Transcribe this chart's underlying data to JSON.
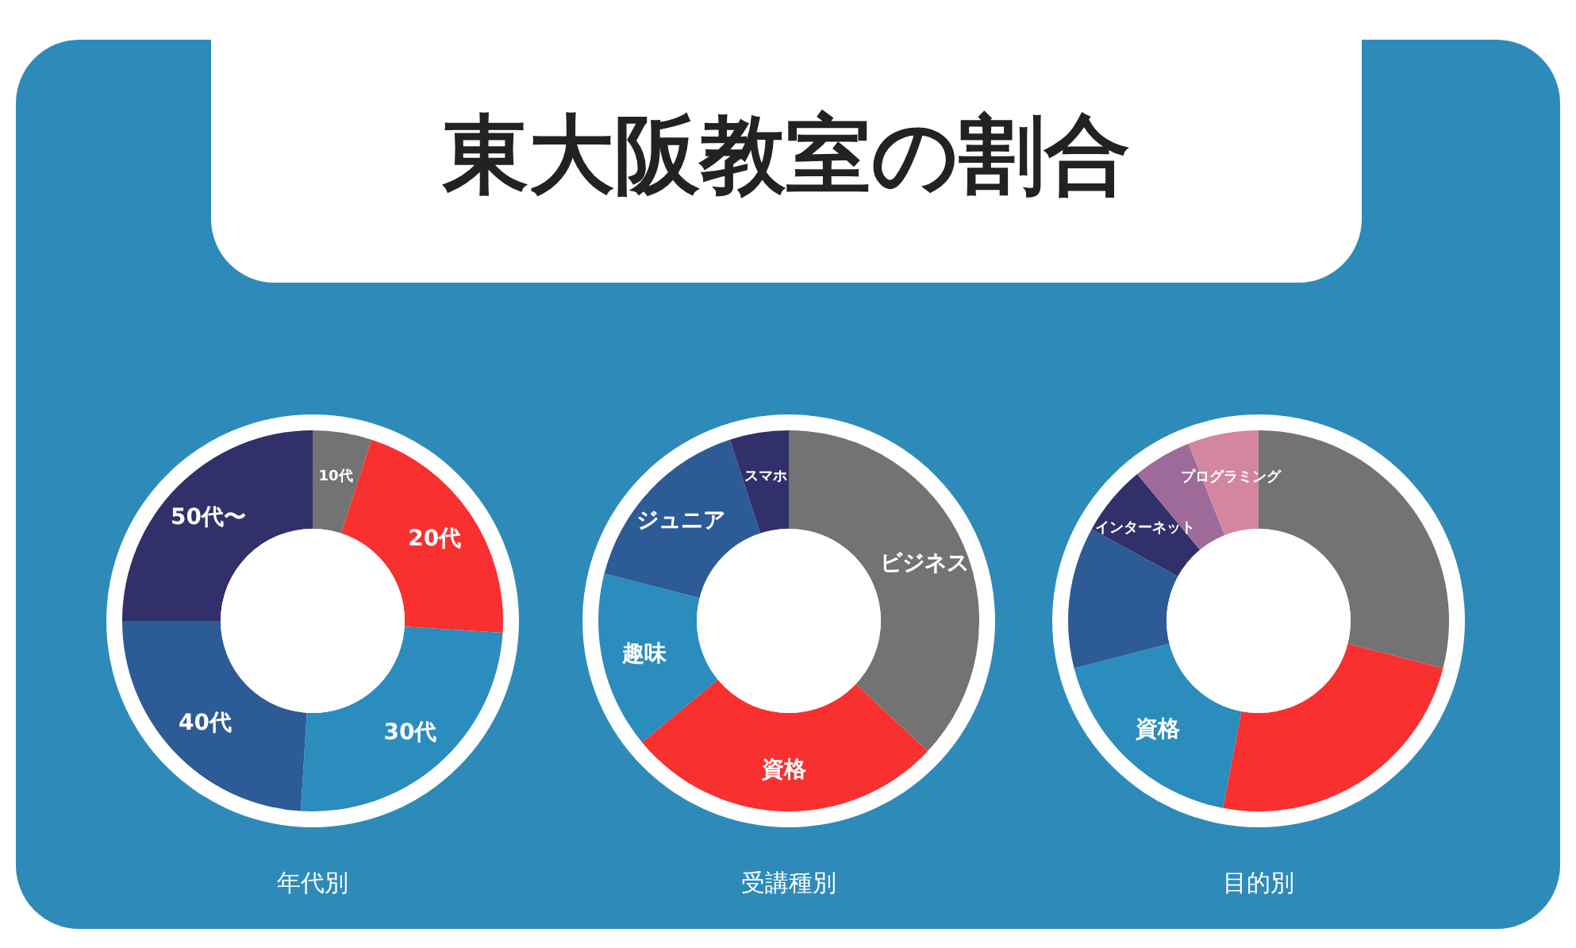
{
  "chart_data": [
    {
      "type": "other",
      "title": "東大阪教室の割合"
    },
    {
      "type": "donut",
      "xlabel": "年代別",
      "categories": [
        "10代",
        "20代",
        "30代",
        "40代",
        "50代〜"
      ],
      "values": [
        5,
        21,
        25,
        24,
        25
      ],
      "colors": [
        "#737373",
        "#f93030",
        "#2b8cbe",
        "#2c5b96",
        "#31306a"
      ]
    },
    {
      "type": "donut",
      "xlabel": "受講種別",
      "categories": [
        "ビジネス",
        "資格",
        "趣味",
        "ジュニア",
        "スマホ"
      ],
      "values": [
        37,
        27,
        15,
        16,
        5
      ],
      "colors": [
        "#737373",
        "#f93030",
        "#2b8cbe",
        "#2c5b96",
        "#31306a"
      ]
    },
    {
      "type": "donut",
      "xlabel": "目的別",
      "categories": [
        null,
        null,
        "資格",
        null,
        "インターネット",
        null,
        "プログラミング"
      ],
      "values": [
        29,
        24,
        18,
        12,
        6,
        5,
        6
      ],
      "colors": [
        "#737373",
        "#f93030",
        "#2b8cbe",
        "#2c5b96",
        "#31306a",
        "#9e6a99",
        "#d3869f"
      ]
    }
  ]
}
